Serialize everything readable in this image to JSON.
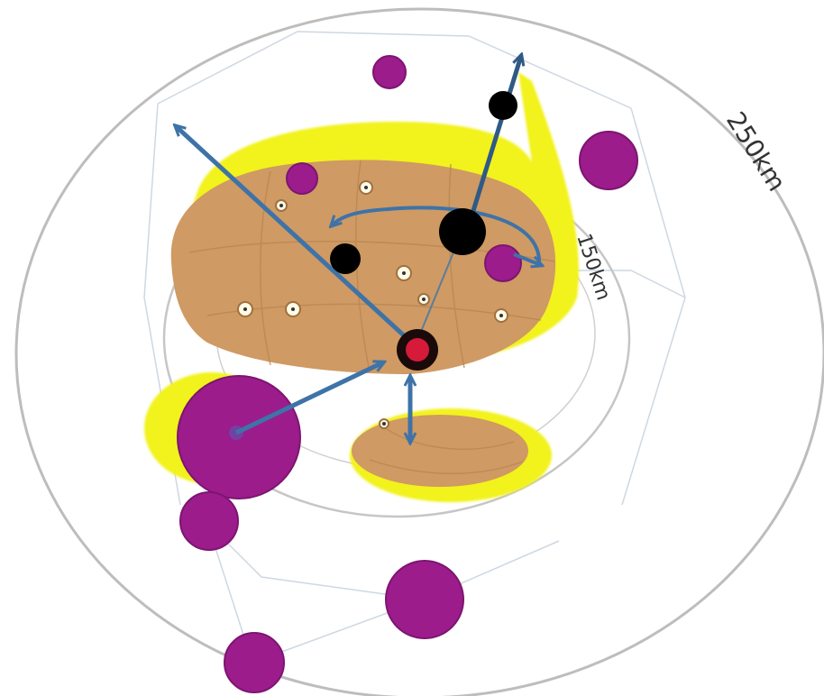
{
  "colors": {
    "ring_outer": "#bdbdbd",
    "ring_inner": "#c6c6c6",
    "thin_lines": "#c9d3df",
    "yellow_halo": "#f2f21a",
    "tan_zone": "#cf9a63",
    "tan_contour": "#b98552",
    "purple": "#9c1c8c",
    "purple_rim": "#7c1570",
    "arrow_blue": "#3e73a8",
    "black_node": "#000000",
    "center_red": "#d51a3a",
    "white_dot": "#fffbe6"
  },
  "labels": {
    "outer_ring": "250km",
    "inner_ring": "150km"
  },
  "icons": {
    "center": "center-node",
    "arrows": "direction-arrows",
    "purple": "purple-circles",
    "black": "black-nodes",
    "white": "white-dots"
  }
}
